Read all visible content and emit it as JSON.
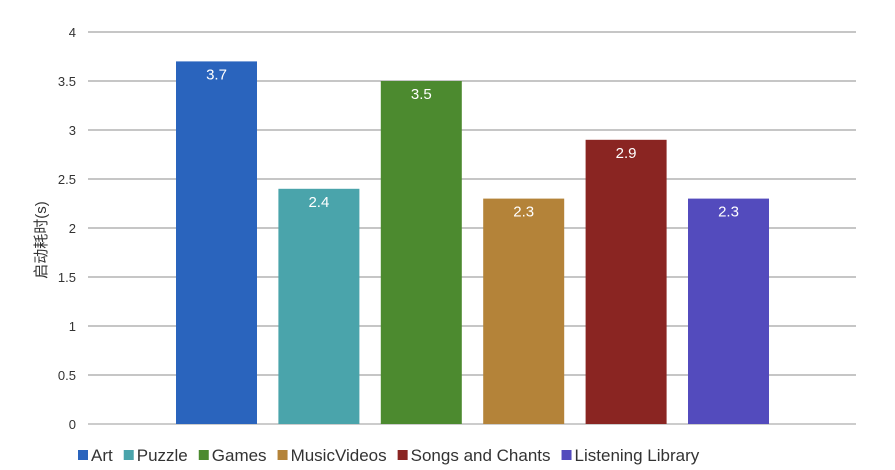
{
  "chart_data": {
    "type": "bar",
    "categories": [
      "Art",
      "Puzzle",
      "Games",
      "MusicVideos",
      "Songs and Chants",
      "Listening Library"
    ],
    "values": [
      3.7,
      2.4,
      3.5,
      2.3,
      2.9,
      2.3
    ],
    "value_labels": [
      "3.7",
      "2.4",
      "3.5",
      "2.3",
      "2.9",
      "2.3"
    ],
    "colors": [
      "#2a64bd",
      "#4aa4ab",
      "#4c8a2f",
      "#b48339",
      "#8a2522",
      "#534bbd"
    ],
    "title": "",
    "xlabel": "",
    "ylabel": "启动耗时(s)",
    "ylim": [
      0,
      4
    ],
    "yticks": [
      "0",
      "0.5",
      "1",
      "1.5",
      "2",
      "2.5",
      "3",
      "3.5",
      "4"
    ],
    "grid": true,
    "legend_position": "bottom"
  }
}
